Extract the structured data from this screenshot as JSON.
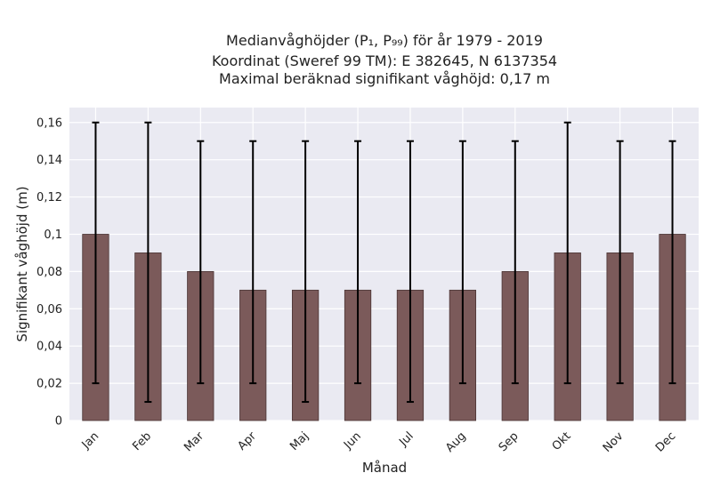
{
  "chart_data": {
    "type": "bar",
    "title_lines": [
      "Medianvåghöjder (P₁, P₉₉) för år 1979 - 2019",
      "Koordinat (Sweref 99 TM): E 382645, N 6137354",
      "Maximal beräknad signifikant våghöjd: 0,17 m"
    ],
    "xlabel": "Månad",
    "ylabel": "Signifikant våghöjd (m)",
    "categories": [
      "Jan",
      "Feb",
      "Mar",
      "Apr",
      "Maj",
      "Jun",
      "Jul",
      "Aug",
      "Sep",
      "Okt",
      "Nov",
      "Dec"
    ],
    "values": [
      0.1,
      0.09,
      0.08,
      0.07,
      0.07,
      0.07,
      0.07,
      0.07,
      0.08,
      0.09,
      0.09,
      0.1
    ],
    "error_low": [
      0.02,
      0.01,
      0.02,
      0.02,
      0.01,
      0.02,
      0.01,
      0.02,
      0.02,
      0.02,
      0.02,
      0.02
    ],
    "error_high": [
      0.16,
      0.16,
      0.15,
      0.15,
      0.15,
      0.15,
      0.15,
      0.15,
      0.15,
      0.16,
      0.15,
      0.15
    ],
    "ylim": [
      0,
      0.168
    ],
    "yticks": [
      0,
      0.02,
      0.04,
      0.06,
      0.08,
      0.1,
      0.12,
      0.14,
      0.16
    ],
    "ytick_labels": [
      "0",
      "0,02",
      "0,04",
      "0,06",
      "0,08",
      "0,1",
      "0,12",
      "0,14",
      "0,16"
    ],
    "grid": true,
    "colors": {
      "plot_background": "#eaeaf2",
      "bar_fill": "#7b5a5a",
      "bar_edge": "#4a3434",
      "error_bar": "#000000",
      "grid": "#ffffff"
    }
  }
}
